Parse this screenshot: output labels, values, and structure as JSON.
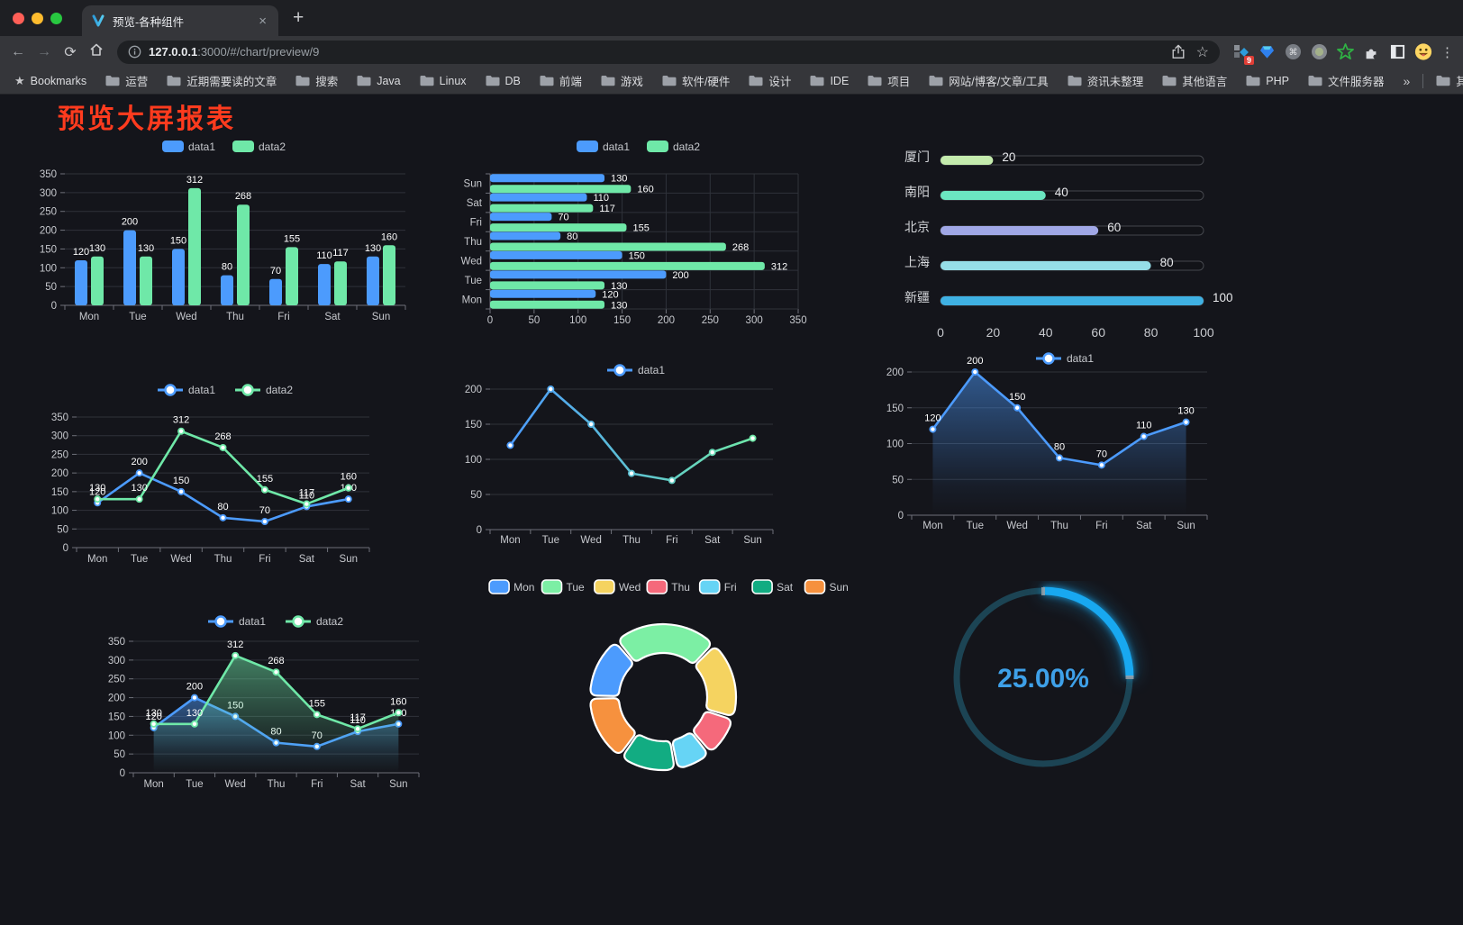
{
  "browser": {
    "tab": {
      "title": "预览-各种组件",
      "close": "×",
      "new_tab": "+"
    },
    "url": {
      "host": "127.0.0.1",
      "rest": ":3000/#/chart/preview/9"
    },
    "extensions_badge": "9",
    "bookmarks_bar": {
      "bookmarks_label": "Bookmarks",
      "folders": [
        "运营",
        "近期需要读的文章",
        "搜索",
        "Java",
        "Linux",
        "DB",
        "前端",
        "游戏",
        "软件/硬件",
        "设计",
        "IDE",
        "项目",
        "网站/博客/文章/工具",
        "资讯未整理",
        "其他语言",
        "PHP",
        "文件服务器"
      ],
      "overflow": "»",
      "other_bookmarks": "其他书签"
    }
  },
  "page": {
    "title": "预览大屏报表",
    "title_color": "#FF3B1E"
  },
  "chart_data": [
    {
      "type": "bar",
      "orientation": "vertical",
      "categories": [
        "Mon",
        "Tue",
        "Wed",
        "Thu",
        "Fri",
        "Sat",
        "Sun"
      ],
      "series": [
        {
          "name": "data1",
          "color": "#4C9BFD",
          "values": [
            120,
            200,
            150,
            80,
            70,
            110,
            130
          ]
        },
        {
          "name": "data2",
          "color": "#6FE8A8",
          "values": [
            130,
            130,
            312,
            268,
            155,
            117,
            160
          ]
        }
      ],
      "ylim": [
        0,
        350
      ],
      "ytick_step": 50,
      "grid": true,
      "legend_position": "top"
    },
    {
      "type": "bar",
      "orientation": "horizontal",
      "categories": [
        "Mon",
        "Tue",
        "Wed",
        "Thu",
        "Fri",
        "Sat",
        "Sun"
      ],
      "display_top_to_bottom": [
        "Sun",
        "Sat",
        "Fri",
        "Thu",
        "Wed",
        "Tue",
        "Mon"
      ],
      "series": [
        {
          "name": "data1",
          "color": "#4C9BFD",
          "values": [
            120,
            200,
            150,
            80,
            70,
            110,
            130
          ]
        },
        {
          "name": "data2",
          "color": "#6FE8A8",
          "values": [
            130,
            130,
            312,
            268,
            155,
            117,
            160
          ]
        }
      ],
      "xlim": [
        0,
        350
      ],
      "xtick_step": 50,
      "grid": true,
      "legend_position": "top"
    },
    {
      "type": "bar",
      "subtype": "progress-list",
      "categories": [
        "厦门",
        "南阳",
        "北京",
        "上海",
        "新疆"
      ],
      "values": [
        20,
        40,
        60,
        80,
        100
      ],
      "colors": [
        "#C4EBAD",
        "#6BE6C1",
        "#A0A7E6",
        "#96DEE8",
        "#3FB1E3"
      ],
      "xlim": [
        0,
        100
      ],
      "xticks": [
        0,
        20,
        40,
        60,
        80,
        100
      ]
    },
    {
      "type": "line",
      "categories": [
        "Mon",
        "Tue",
        "Wed",
        "Thu",
        "Fri",
        "Sat",
        "Sun"
      ],
      "series": [
        {
          "name": "data1",
          "color": "#4C9BFD",
          "values": [
            120,
            200,
            150,
            80,
            70,
            110,
            130
          ]
        },
        {
          "name": "data2",
          "color": "#6FE8A8",
          "values": [
            130,
            130,
            312,
            268,
            155,
            117,
            160
          ]
        }
      ],
      "ylim": [
        0,
        350
      ],
      "ytick_step": 50,
      "point_labels": true,
      "legend_position": "top"
    },
    {
      "type": "line",
      "categories": [
        "Mon",
        "Tue",
        "Wed",
        "Thu",
        "Fri",
        "Sat",
        "Sun"
      ],
      "series": [
        {
          "name": "data1",
          "gradient": [
            "#4C9BFD",
            "#6FE8A8"
          ],
          "values": [
            120,
            200,
            150,
            80,
            70,
            110,
            130
          ]
        }
      ],
      "ylim": [
        0,
        200
      ],
      "ytick_step": 50,
      "point_labels": false,
      "legend_position": "top"
    },
    {
      "type": "area",
      "categories": [
        "Mon",
        "Tue",
        "Wed",
        "Thu",
        "Fri",
        "Sat",
        "Sun"
      ],
      "series": [
        {
          "name": "data1",
          "color": "#4C9BFD",
          "values": [
            120,
            200,
            150,
            80,
            70,
            110,
            130
          ]
        }
      ],
      "ylim": [
        0,
        200
      ],
      "ytick_step": 50,
      "point_labels": true,
      "legend_position": "top"
    },
    {
      "type": "area",
      "categories": [
        "Mon",
        "Tue",
        "Wed",
        "Thu",
        "Fri",
        "Sat",
        "Sun"
      ],
      "series": [
        {
          "name": "data1",
          "color": "#4C9BFD",
          "values": [
            120,
            200,
            150,
            80,
            70,
            110,
            130
          ]
        },
        {
          "name": "data2",
          "color": "#6FE8A8",
          "values": [
            130,
            130,
            312,
            268,
            155,
            117,
            160
          ]
        }
      ],
      "ylim": [
        0,
        350
      ],
      "ytick_step": 50,
      "point_labels": true,
      "legend_position": "top"
    },
    {
      "type": "pie",
      "subtype": "donut",
      "labels": [
        "Mon",
        "Tue",
        "Wed",
        "Thu",
        "Fri",
        "Sat",
        "Sun"
      ],
      "values": [
        120,
        200,
        150,
        80,
        70,
        110,
        130
      ],
      "colors": [
        "#4C9BFD",
        "#7CEFA4",
        "#F5D360",
        "#F5697B",
        "#66D4F5",
        "#12AC82",
        "#F6913E"
      ],
      "legend_position": "top"
    },
    {
      "type": "gauge",
      "subtype": "ring-progress",
      "value": 25,
      "display": "25.00%",
      "color": "#18A8F0",
      "track_color": "#1C4454",
      "text_color": "#3EA0E8"
    }
  ]
}
